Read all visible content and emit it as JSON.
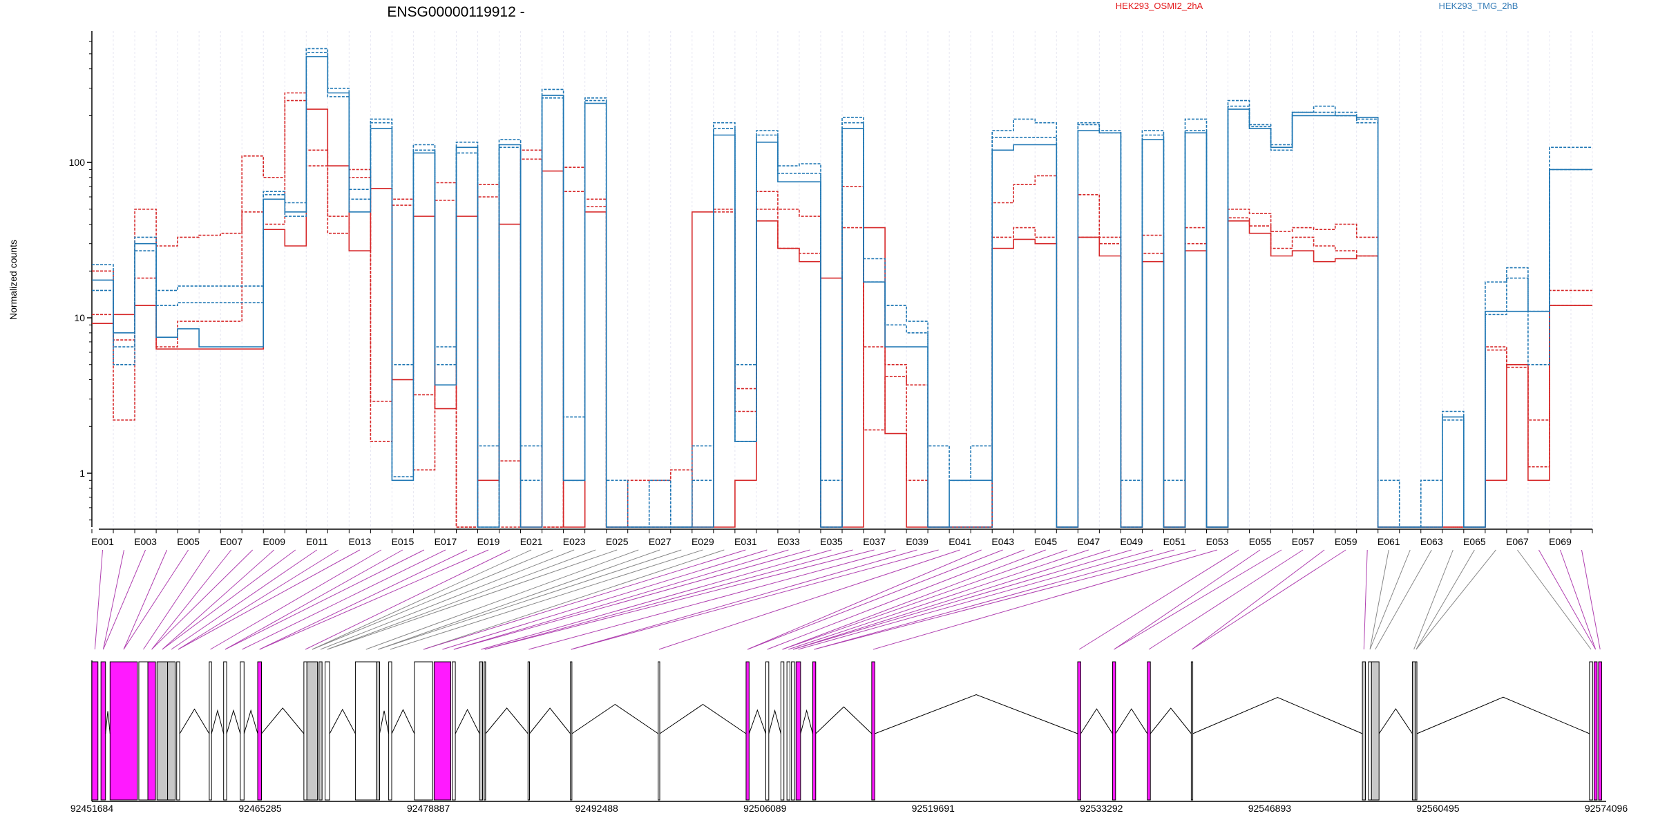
{
  "chart_data": {
    "type": "line",
    "title": "ENSG00000119912 -",
    "ylabel": "Normalized counts",
    "xlabel": "",
    "y_scale": "log",
    "ylim": [
      0.45,
      700
    ],
    "yticks": [
      1,
      10,
      100
    ],
    "ytick_labels": [
      "1",
      "10",
      "100"
    ],
    "grid": true,
    "legend": {
      "placement": "top",
      "entries": [
        {
          "name": "HEK293_OSMI2_2hA",
          "color": "#e41a1c"
        },
        {
          "name": "HEK293_TMG_2hB",
          "color": "#377eb8"
        }
      ]
    },
    "bin_labels": [
      "E001",
      "E003",
      "E005",
      "E007",
      "E009",
      "E011",
      "E013",
      "E015",
      "E017",
      "E019",
      "E021",
      "E023",
      "E025",
      "E027",
      "E029",
      "E031",
      "E033",
      "E035",
      "E037",
      "E039",
      "E041",
      "E043",
      "E045",
      "E047",
      "E049",
      "E051",
      "E053",
      "E055",
      "E057",
      "E059",
      "E061",
      "E063",
      "E065",
      "E067",
      "E069"
    ],
    "bin_label_positions": [
      1,
      3,
      5,
      7,
      9,
      11,
      13,
      15,
      17,
      19,
      21,
      23,
      25,
      27,
      29,
      31,
      33,
      35,
      37,
      39,
      41,
      43,
      45,
      47,
      49,
      51,
      53,
      55,
      57,
      59,
      61,
      63,
      65,
      67,
      69
    ],
    "n_bins": 70,
    "series": [
      {
        "name": "HEK293_OSMI2_2hA",
        "color": "#d62728",
        "dash": "solid",
        "values": [
          9.2,
          10.5,
          12,
          6.3,
          6.3,
          6.3,
          6.3,
          6.3,
          37,
          29,
          220,
          95,
          27,
          68,
          4,
          45,
          2.6,
          45,
          0.9,
          40,
          0.45,
          88,
          0.45,
          48,
          0.45,
          0.45,
          0.45,
          0.45,
          48,
          0.45,
          0.9,
          42,
          28,
          23,
          18,
          0.45,
          38,
          1.8,
          0.45,
          0.45,
          0.45,
          0.45,
          28,
          32,
          30,
          0.45,
          33,
          25,
          0.45,
          23,
          0.45,
          27,
          0.45,
          42,
          35,
          25,
          27,
          23,
          24,
          25,
          0.45,
          0.45,
          0.45,
          0.45,
          0.45,
          0.9,
          5,
          0.9,
          12,
          12
        ]
      },
      {
        "name": "HEK293_OSMI2_2hA",
        "color": "#d62728",
        "dash": "dashed",
        "values": [
          20,
          2.2,
          50,
          29,
          33,
          34,
          35,
          110,
          80,
          280,
          120,
          35,
          90,
          1.6,
          58,
          1.05,
          74,
          0.45,
          72,
          0.45,
          120,
          0.45,
          93,
          58,
          0.45,
          0.9,
          0.9,
          1.05,
          0.45,
          50,
          3.5,
          65,
          50,
          45,
          0.45,
          70,
          6.5,
          5,
          0.9,
          0.45,
          0.45,
          0.45,
          55,
          72,
          82,
          0.45,
          62,
          33,
          0.45,
          34,
          0.45,
          38,
          0.45,
          50,
          47,
          36,
          38,
          37,
          40,
          33,
          0.45,
          0.45,
          0.45,
          0.45,
          0.45,
          6.5,
          5,
          2.2,
          15,
          15
        ]
      },
      {
        "name": "HEK293_OSMI2_2hA",
        "color": "#d62728",
        "dash": "dashed",
        "values": [
          10.5,
          7.2,
          18,
          6.5,
          9.5,
          9.5,
          9.5,
          48,
          40,
          250,
          95,
          45,
          80,
          2.9,
          53,
          3.2,
          57,
          0.45,
          60,
          1.2,
          105,
          0.45,
          65,
          52,
          0.45,
          0.45,
          0.45,
          0.45,
          0.45,
          48,
          2.5,
          50,
          28,
          26,
          0.45,
          38,
          1.9,
          4.2,
          3.7,
          0.45,
          0.45,
          0.45,
          33,
          38,
          33,
          0.45,
          33,
          30,
          0.45,
          26,
          0.45,
          30,
          0.45,
          44,
          39,
          28,
          33,
          29,
          27,
          25,
          0.45,
          0.45,
          0.45,
          0.45,
          0.45,
          6.2,
          4.8,
          1.1,
          12,
          12
        ]
      },
      {
        "name": "HEK293_TMG_2hB",
        "color": "#1f77b4",
        "dash": "solid",
        "values": [
          17.5,
          8,
          30,
          7.5,
          8.5,
          6.5,
          6.5,
          6.5,
          58,
          48,
          480,
          280,
          48,
          165,
          0.9,
          115,
          3.7,
          125,
          0.45,
          130,
          0.45,
          270,
          0.9,
          240,
          0.45,
          0.45,
          0.45,
          0.45,
          0.45,
          150,
          1.6,
          135,
          75,
          75,
          0.45,
          165,
          17,
          6.5,
          6.5,
          0.45,
          0.9,
          0.9,
          120,
          130,
          130,
          0.45,
          160,
          155,
          0.45,
          140,
          0.45,
          155,
          0.45,
          220,
          165,
          125,
          200,
          200,
          200,
          195,
          0.45,
          0.45,
          0.45,
          2.3,
          0.45,
          11,
          11,
          11,
          90,
          90
        ]
      },
      {
        "name": "HEK293_TMG_2hB",
        "color": "#1f77b4",
        "dash": "dashed",
        "values": [
          22,
          5,
          27,
          15,
          16,
          16,
          16,
          16,
          65,
          55,
          540,
          300,
          67,
          190,
          5,
          130,
          6.5,
          135,
          1.5,
          140,
          0.9,
          295,
          0.9,
          260,
          0.9,
          0.45,
          0.9,
          0.45,
          1.5,
          180,
          5,
          160,
          95,
          98,
          0.9,
          195,
          24,
          12,
          9.5,
          1.5,
          0.9,
          1.5,
          160,
          190,
          180,
          0.45,
          180,
          160,
          0.9,
          160,
          0.9,
          190,
          0.45,
          250,
          175,
          130,
          210,
          230,
          210,
          180,
          0.9,
          0.45,
          0.9,
          2.5,
          0.45,
          17,
          21,
          11,
          125,
          125
        ]
      },
      {
        "name": "HEK293_TMG_2hB",
        "color": "#1f77b4",
        "dash": "dashed",
        "values": [
          15,
          6.5,
          33,
          12,
          12.5,
          12.5,
          12.5,
          12.5,
          62,
          45,
          510,
          265,
          58,
          180,
          0.95,
          120,
          5,
          115,
          0.45,
          125,
          1.5,
          260,
          2.3,
          250,
          0.45,
          0.45,
          0.45,
          0.45,
          0.9,
          165,
          1.6,
          150,
          85,
          85,
          0.45,
          180,
          17,
          9,
          8,
          0.45,
          0.45,
          0.45,
          145,
          145,
          145,
          0.45,
          175,
          155,
          0.45,
          150,
          0.45,
          160,
          0.45,
          230,
          170,
          120,
          210,
          210,
          200,
          190,
          0.45,
          0.45,
          0.45,
          2.2,
          0.45,
          10.5,
          18,
          5,
          90,
          90
        ]
      }
    ],
    "genomic_axis": {
      "tick_labels": [
        "92451684",
        "92465285",
        "92478887",
        "92492488",
        "92506089",
        "92519691",
        "92533292",
        "92546893",
        "92560495",
        "92574096"
      ],
      "tick_values": [
        92451684,
        92465285,
        92478887,
        92492488,
        92506089,
        92519691,
        92533292,
        92546893,
        92560495,
        92574096
      ],
      "range": [
        92451684,
        92574096
      ]
    },
    "exon_colors": {
      "highlight": "#ff1aff",
      "default": "#c8c8c8",
      "blank": "#ffffff",
      "outline": "#000000"
    },
    "connector_colors": {
      "highlight": "#b040b0",
      "default": "#888888"
    },
    "connector_highlight_bins": [
      1,
      2,
      3,
      4,
      5,
      6,
      7,
      8,
      9,
      10,
      11,
      12,
      13,
      14,
      15,
      16,
      17,
      18,
      19,
      20,
      31,
      32,
      33,
      34,
      35,
      36,
      37,
      38,
      39,
      40,
      41,
      42,
      43,
      44,
      45,
      46,
      47,
      48,
      49,
      50,
      51,
      52,
      53,
      54,
      55,
      56,
      57,
      58,
      59,
      60,
      68,
      69,
      70
    ]
  }
}
